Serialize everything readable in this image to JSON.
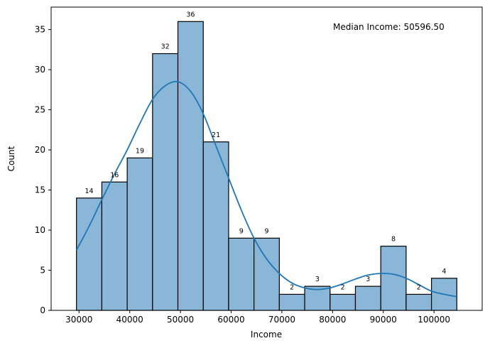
{
  "chart_data": {
    "type": "bar",
    "xlabel": "Income",
    "ylabel": "Count",
    "annotation": "Median Income: 50596.50",
    "xlim": [
      24500,
      109500
    ],
    "ylim": [
      0,
      37.8
    ],
    "xticks": [
      30000,
      40000,
      50000,
      60000,
      70000,
      80000,
      90000,
      100000
    ],
    "yticks": [
      0,
      5,
      10,
      15,
      20,
      25,
      30,
      35
    ],
    "bin_edges": [
      29500,
      34500,
      39500,
      44500,
      49500,
      54500,
      59500,
      64500,
      69500,
      74500,
      79500,
      84500,
      89500,
      94500,
      99500,
      104500
    ],
    "values": [
      14,
      16,
      19,
      32,
      36,
      21,
      9,
      9,
      2,
      3,
      2,
      3,
      8,
      2,
      4
    ],
    "kde": {
      "x": [
        29500,
        32000,
        34500,
        37000,
        39500,
        42000,
        44500,
        47000,
        49500,
        52000,
        54500,
        57000,
        59500,
        62000,
        64500,
        67000,
        69500,
        72000,
        74500,
        77000,
        79500,
        82000,
        84500,
        87000,
        89500,
        92000,
        94500,
        97000,
        99500,
        102000,
        104500
      ],
      "y": [
        7.5,
        10.5,
        13.8,
        17.0,
        20.0,
        23.3,
        26.3,
        28.0,
        28.5,
        27.3,
        24.5,
        20.5,
        16.5,
        12.5,
        9.0,
        6.4,
        4.6,
        3.4,
        2.8,
        2.6,
        2.8,
        3.3,
        3.9,
        4.4,
        4.6,
        4.5,
        4.0,
        3.2,
        2.4,
        2.0,
        1.7
      ]
    },
    "colors": {
      "bar_fill": "#8ab6d8",
      "bar_edge": "#000000",
      "kde_line": "#1f77b4"
    },
    "grid": false,
    "legend": "none"
  }
}
